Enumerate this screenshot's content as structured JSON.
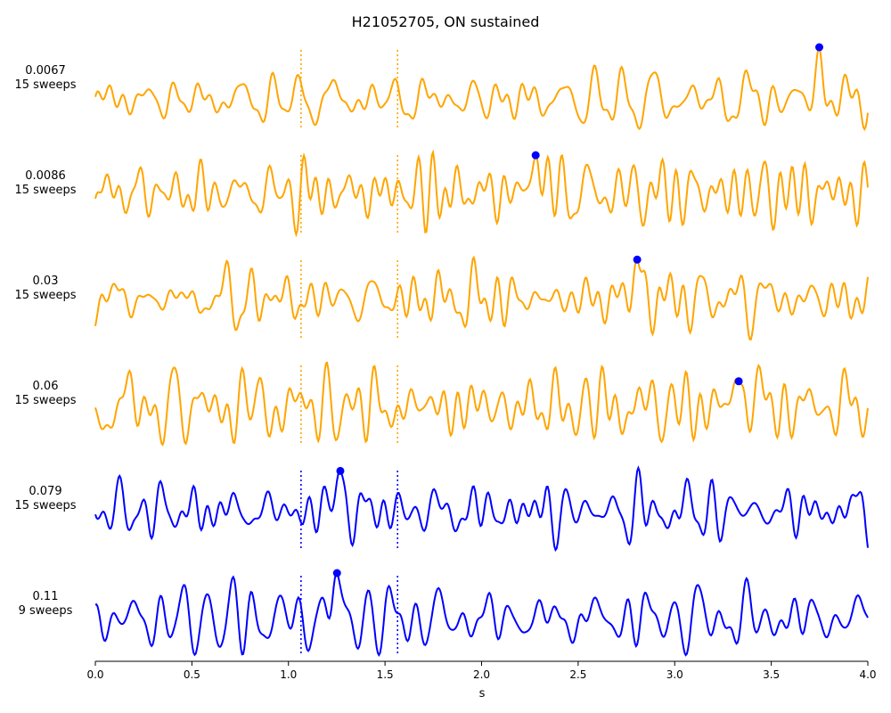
{
  "chart_data": {
    "type": "line",
    "title": "H21052705, ON sustained",
    "xlabel": "s",
    "xlim": [
      0.0,
      4.0
    ],
    "xticks": [
      "0.0",
      "0.5",
      "1.0",
      "1.5",
      "2.0",
      "2.5",
      "3.0",
      "3.5",
      "4.0"
    ],
    "grid": false,
    "stimulus_window_s": [
      1.065,
      1.565
    ],
    "colors": {
      "subthreshold": "#FFA500",
      "suprathreshold": "#0000FF",
      "peak_marker": "#0000FF"
    },
    "series": [
      {
        "label_value": "0.0067",
        "label_sweeps": "15 sweeps",
        "color": "#FFA500",
        "peak_time_s": 3.75,
        "seed": 11
      },
      {
        "label_value": "0.0086",
        "label_sweeps": "15 sweeps",
        "color": "#FFA500",
        "peak_time_s": 2.29,
        "seed": 23
      },
      {
        "label_value": "0.03",
        "label_sweeps": "15 sweeps",
        "color": "#FFA500",
        "peak_time_s": 2.8,
        "seed": 37
      },
      {
        "label_value": "0.06",
        "label_sweeps": "15 sweeps",
        "color": "#FFA500",
        "peak_time_s": 3.36,
        "seed": 41
      },
      {
        "label_value": "0.079",
        "label_sweeps": "15 sweeps",
        "color": "#0000FF",
        "peak_time_s": 1.26,
        "seed": 53
      },
      {
        "label_value": "0.11",
        "label_sweeps": "9 sweeps",
        "color": "#0000FF",
        "peak_time_s": 1.24,
        "seed": 67
      }
    ]
  }
}
